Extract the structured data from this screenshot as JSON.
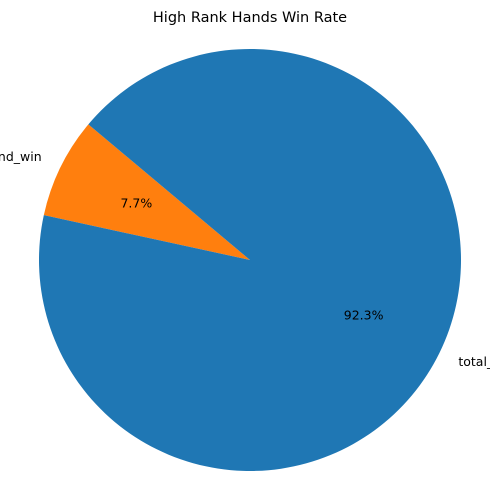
{
  "chart_data": {
    "type": "pie",
    "title": "High Rank Hands Win Rate",
    "labels": [
      "high_hand_win",
      "total_game"
    ],
    "values": [
      7.7,
      92.3
    ],
    "value_labels": [
      "7.7%",
      "92.3%"
    ],
    "colors": [
      "#ff7f0e",
      "#1f77b4"
    ],
    "start_angle_deg": 140,
    "direction": "counterclockwise",
    "legend": false
  }
}
